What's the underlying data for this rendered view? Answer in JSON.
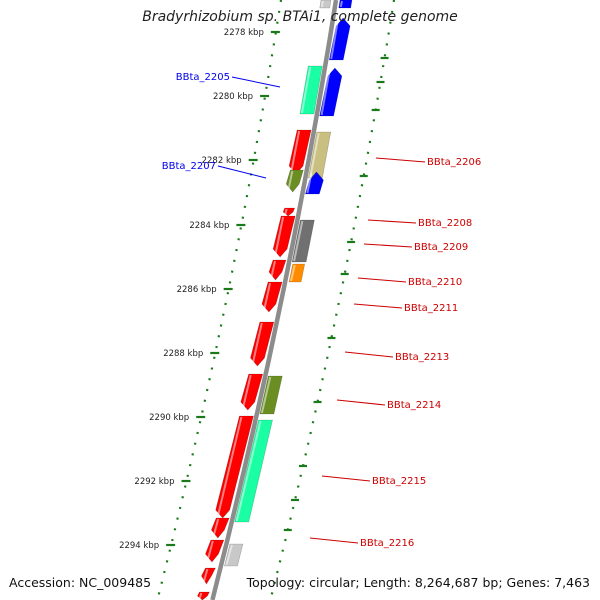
{
  "title": "Bradyrhizobium sp. BTAi1, complete genome",
  "footer": {
    "accession": "Accession: NC_009485",
    "topology": "Topology: circular; Length: 8,264,687 bp; Genes: 7,463"
  },
  "ticks": [
    "2278 kbp",
    "2280 kbp",
    "2282 kbp",
    "2284 kbp",
    "2286 kbp",
    "2288 kbp",
    "2290 kbp",
    "2292 kbp",
    "2294 kbp"
  ],
  "genes": [
    {
      "label": "BBta_2205",
      "strand": "minus",
      "color": "#0000ee"
    },
    {
      "label": "BBta_2206",
      "strand": "plus",
      "color": "#cc0000"
    },
    {
      "label": "BBta_2207",
      "strand": "minus",
      "color": "#0000ee"
    },
    {
      "label": "BBta_2208",
      "strand": "plus",
      "color": "#cc0000"
    },
    {
      "label": "BBta_2209",
      "strand": "plus",
      "color": "#cc0000"
    },
    {
      "label": "BBta_2210",
      "strand": "plus",
      "color": "#cc0000"
    },
    {
      "label": "BBta_2211",
      "strand": "plus",
      "color": "#cc0000"
    },
    {
      "label": "BBta_2213",
      "strand": "plus",
      "color": "#cc0000"
    },
    {
      "label": "BBta_2214",
      "strand": "plus",
      "color": "#cc0000"
    },
    {
      "label": "BBta_2215",
      "strand": "plus",
      "color": "#cc0000"
    },
    {
      "label": "BBta_2216",
      "strand": "plus",
      "color": "#cc0000"
    }
  ],
  "colors": {
    "backbone": "#8c8c8c",
    "tick": "#1a7a1a",
    "red": "#ff0000",
    "blue": "#0000ff",
    "teal": "#1affa3",
    "olive": "#6b8e23",
    "khaki": "#c8bf80",
    "gray": "#707070",
    "orange": "#ff8c00",
    "lightgray": "#c8c8c8"
  }
}
